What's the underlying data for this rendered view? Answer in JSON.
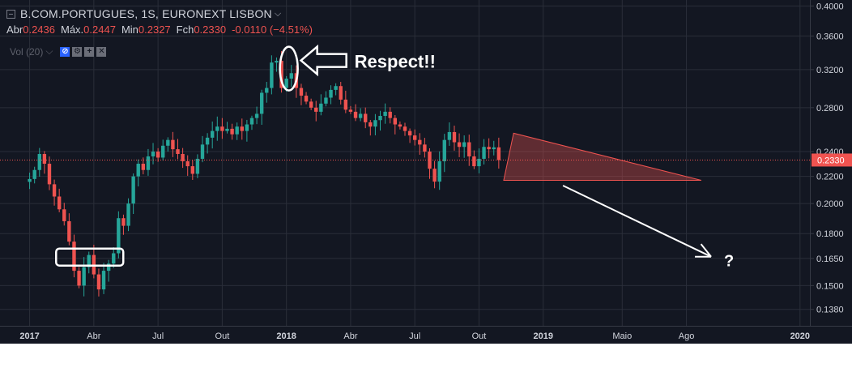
{
  "header": {
    "symbol_line": "B.COM.PORTUGUES, 1S, EURONEXT LISBON",
    "ohlc": [
      {
        "label": "Abr",
        "value": "0.2436"
      },
      {
        "label": "Máx.",
        "value": "0.2447"
      },
      {
        "label": "Min",
        "value": "0.2327"
      },
      {
        "label": "Fch",
        "value": "0.2330"
      }
    ],
    "change": "-0.0110 (−4.51%)",
    "volume_label": "Vol (20)"
  },
  "annotations": {
    "respect_text": "Respect!!",
    "question_text": "?"
  },
  "colors": {
    "background": "#131722",
    "up": "#26a69a",
    "down": "#ef5350",
    "grid": "#2a2e39",
    "text": "#d1d4dc",
    "last_price": "#ef5350"
  },
  "chart_data": {
    "type": "candlestick",
    "title": "B.COM.PORTUGUES, 1S, EURONEXT LISBON",
    "y_ticks": [
      0.138,
      0.15,
      0.165,
      0.18,
      0.2,
      0.22,
      0.24,
      0.28,
      0.32,
      0.36,
      0.4
    ],
    "y_tick_labels": [
      "0.1380",
      "0.1500",
      "0.1650",
      "0.1800",
      "0.2000",
      "0.2200",
      "0.2400",
      "0.2800",
      "0.3200",
      "0.3600",
      "0.4000"
    ],
    "y_scale": "log",
    "ylim": [
      0.131,
      0.405
    ],
    "x_ticks": [
      {
        "label": "2017",
        "week": 0,
        "bold": true
      },
      {
        "label": "Abr",
        "week": 13,
        "bold": false
      },
      {
        "label": "Jul",
        "week": 26,
        "bold": false
      },
      {
        "label": "Out",
        "week": 39,
        "bold": false
      },
      {
        "label": "2018",
        "week": 52,
        "bold": true
      },
      {
        "label": "Abr",
        "week": 65,
        "bold": false
      },
      {
        "label": "Jul",
        "week": 78,
        "bold": false
      },
      {
        "label": "Out",
        "week": 91,
        "bold": false
      },
      {
        "label": "2019",
        "week": 104,
        "bold": true
      },
      {
        "label": "Maio",
        "week": 120,
        "bold": false
      },
      {
        "label": "Ago",
        "week": 133,
        "bold": false
      },
      {
        "label": "2020",
        "week": 156,
        "bold": true
      }
    ],
    "x_range_weeks": [
      -6,
      158
    ],
    "last_price": 0.233,
    "last_price_label": "0.2330",
    "closes": [
      0.218,
      0.225,
      0.238,
      0.23,
      0.214,
      0.205,
      0.196,
      0.188,
      0.175,
      0.158,
      0.15,
      0.16,
      0.167,
      0.156,
      0.148,
      0.158,
      0.162,
      0.168,
      0.19,
      0.185,
      0.2,
      0.22,
      0.23,
      0.225,
      0.236,
      0.24,
      0.235,
      0.245,
      0.25,
      0.242,
      0.238,
      0.232,
      0.228,
      0.222,
      0.234,
      0.246,
      0.252,
      0.258,
      0.262,
      0.258,
      0.26,
      0.255,
      0.262,
      0.258,
      0.264,
      0.27,
      0.274,
      0.295,
      0.3,
      0.328,
      0.33,
      0.3,
      0.31,
      0.316,
      0.3,
      0.292,
      0.286,
      0.28,
      0.276,
      0.284,
      0.29,
      0.298,
      0.302,
      0.288,
      0.278,
      0.276,
      0.27,
      0.274,
      0.266,
      0.262,
      0.268,
      0.272,
      0.276,
      0.27,
      0.264,
      0.262,
      0.258,
      0.254,
      0.25,
      0.246,
      0.24,
      0.226,
      0.216,
      0.232,
      0.25,
      0.257,
      0.248,
      0.244,
      0.248,
      0.236,
      0.228,
      0.234,
      0.244,
      0.242,
      0.2436,
      0.233
    ],
    "wedge_pattern": {
      "points": [
        {
          "week": 96,
          "price": 0.217
        },
        {
          "week": 98,
          "price": 0.256
        },
        {
          "week": 136,
          "price": 0.217
        }
      ]
    },
    "projection_arrow": {
      "from": {
        "week": 108,
        "price": 0.213
      },
      "to": {
        "week": 138,
        "price": 0.166
      }
    },
    "respect_arrow_target": {
      "week": 52,
      "price": 0.323
    }
  }
}
